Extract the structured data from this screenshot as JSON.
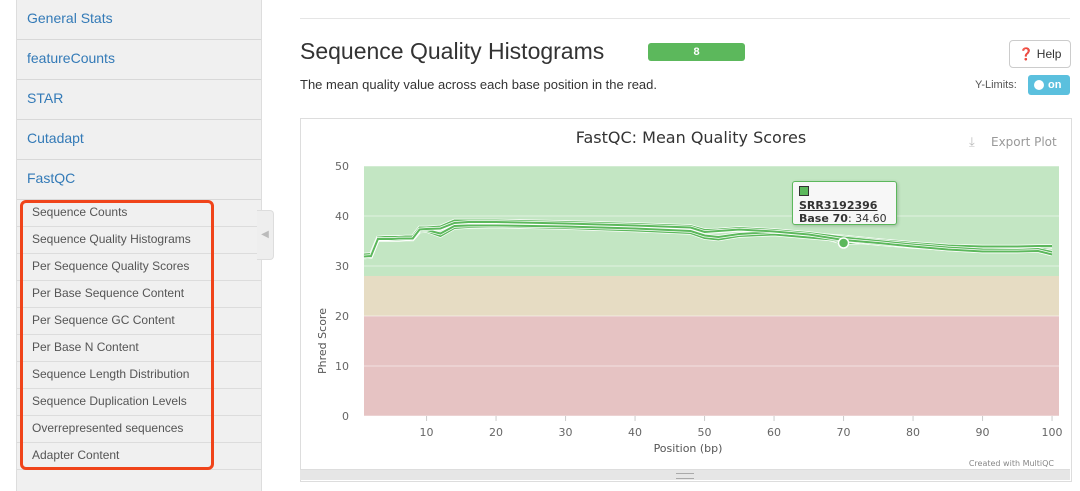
{
  "sidebar": {
    "items": [
      {
        "label": "General Stats"
      },
      {
        "label": "featureCounts"
      },
      {
        "label": "STAR"
      },
      {
        "label": "Cutadapt"
      },
      {
        "label": "FastQC"
      }
    ],
    "sub_items": [
      {
        "label": "Sequence Counts"
      },
      {
        "label": "Sequence Quality Histograms"
      },
      {
        "label": "Per Sequence Quality Scores"
      },
      {
        "label": "Per Base Sequence Content"
      },
      {
        "label": "Per Sequence GC Content"
      },
      {
        "label": "Per Base N Content"
      },
      {
        "label": "Sequence Length Distribution"
      },
      {
        "label": "Sequence Duplication Levels"
      },
      {
        "label": "Overrepresented sequences"
      },
      {
        "label": "Adapter Content"
      }
    ]
  },
  "section": {
    "title": "Sequence Quality Histograms",
    "badge": "8",
    "help_label": "Help",
    "description": "The mean quality value across each base position in the read.",
    "ylimits_label": "Y-Limits:",
    "ylimits_toggle": "on"
  },
  "plot": {
    "export_label": "Export Plot",
    "credit": "Created with MultiQC",
    "tooltip": {
      "sample": "SRR3192396",
      "base_label": "Base 70",
      "value": ": 34.60"
    }
  },
  "colors": {
    "line": "#5cb85c",
    "good": "#c3e6c3",
    "warn": "#e6dcc3",
    "bad": "#e6c3c3",
    "accent": "#337ab7"
  },
  "chart_data": {
    "type": "line",
    "title": "FastQC: Mean Quality Scores",
    "xlabel": "Position (bp)",
    "ylabel": "Phred Score",
    "xlim": [
      1,
      101
    ],
    "ylim": [
      0,
      50
    ],
    "xticks": [
      10,
      20,
      30,
      40,
      50,
      60,
      70,
      80,
      90,
      100
    ],
    "yticks": [
      0,
      10,
      20,
      30,
      40,
      50
    ],
    "bands": [
      {
        "from": 28,
        "to": 50,
        "color": "#c3e6c3"
      },
      {
        "from": 20,
        "to": 28,
        "color": "#e6dcc3"
      },
      {
        "from": 0,
        "to": 20,
        "color": "#e6c3c3"
      }
    ],
    "grid": true,
    "x": [
      1,
      2,
      3,
      4,
      5,
      6,
      7,
      8,
      9,
      10,
      12,
      14,
      16,
      20,
      30,
      40,
      48,
      50,
      52,
      55,
      60,
      65,
      70,
      75,
      80,
      85,
      90,
      95,
      98,
      100
    ],
    "series": [
      {
        "values": [
          32.2,
          32.3,
          35.6,
          35.7,
          35.7,
          35.7,
          35.8,
          35.8,
          37.6,
          37.6,
          37.8,
          38.9,
          39.0,
          39.0,
          38.7,
          38.3,
          37.9,
          37.1,
          37.2,
          37.5,
          37.1,
          36.5,
          35.6,
          34.9,
          34.2,
          33.6,
          33.2,
          33.1,
          33.3,
          32.6
        ]
      },
      {
        "values": [
          32.0,
          32.1,
          35.4,
          35.5,
          35.5,
          35.5,
          35.6,
          35.6,
          37.4,
          37.5,
          37.6,
          38.7,
          38.8,
          38.8,
          38.5,
          38.1,
          37.7,
          36.9,
          37.0,
          37.3,
          36.9,
          36.3,
          35.3,
          34.7,
          34.0,
          33.4,
          33.0,
          33.0,
          33.1,
          32.4
        ]
      },
      {
        "values": [
          31.8,
          31.9,
          35.3,
          35.3,
          35.3,
          35.4,
          35.4,
          35.4,
          37.2,
          37.3,
          37.4,
          38.5,
          38.7,
          38.7,
          38.4,
          38.0,
          37.6,
          36.8,
          36.9,
          37.2,
          36.8,
          36.2,
          35.1,
          34.6,
          33.9,
          33.3,
          32.9,
          32.9,
          33.0,
          32.3
        ]
      },
      {
        "values": [
          32.1,
          32.2,
          35.5,
          35.6,
          35.6,
          35.6,
          35.7,
          35.7,
          37.5,
          37.5,
          37.7,
          38.8,
          38.9,
          38.9,
          38.6,
          38.2,
          37.8,
          37.0,
          37.1,
          37.4,
          37.0,
          36.4,
          34.6,
          34.8,
          34.1,
          33.5,
          33.1,
          33.0,
          33.2,
          32.5
        ]
      },
      {
        "values": [
          31.7,
          31.8,
          35.2,
          35.2,
          35.2,
          35.2,
          35.3,
          35.3,
          36.9,
          37.0,
          36.0,
          37.6,
          37.8,
          37.9,
          37.6,
          37.1,
          36.6,
          35.6,
          35.3,
          36.0,
          36.3,
          35.7,
          35.1,
          34.4,
          33.8,
          33.4,
          33.3,
          33.4,
          33.6,
          33.8
        ]
      },
      {
        "values": [
          31.9,
          32.0,
          35.3,
          35.3,
          35.4,
          35.4,
          35.4,
          35.5,
          37.1,
          37.2,
          36.5,
          38.0,
          38.1,
          38.1,
          37.9,
          37.5,
          37.0,
          36.1,
          35.8,
          36.4,
          36.8,
          36.4,
          35.9,
          35.2,
          34.6,
          34.1,
          33.9,
          33.9,
          34.0,
          34.0
        ]
      },
      {
        "values": [
          32.3,
          32.4,
          35.7,
          35.8,
          35.8,
          35.8,
          35.9,
          35.9,
          37.7,
          37.7,
          37.9,
          39.1,
          39.1,
          39.1,
          38.8,
          38.4,
          38.0,
          37.2,
          37.3,
          37.6,
          37.2,
          36.6,
          35.7,
          35.0,
          34.3,
          33.7,
          33.3,
          33.2,
          33.4,
          32.8
        ]
      },
      {
        "values": [
          31.9,
          32.0,
          35.4,
          35.4,
          35.4,
          35.5,
          35.5,
          35.5,
          37.3,
          37.4,
          37.5,
          38.6,
          38.8,
          38.8,
          38.5,
          38.1,
          37.7,
          36.8,
          37.0,
          37.3,
          36.9,
          36.3,
          35.2,
          34.6,
          33.9,
          33.3,
          32.9,
          32.9,
          33.0,
          32.3
        ]
      }
    ]
  }
}
